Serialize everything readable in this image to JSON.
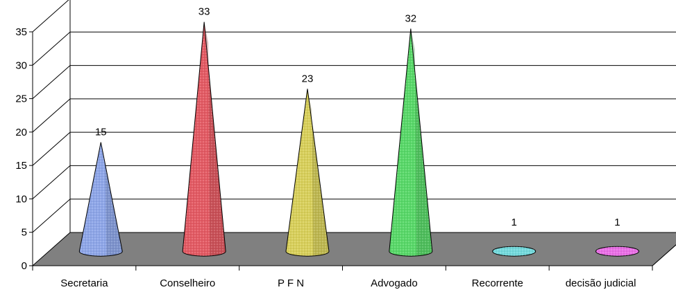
{
  "chart_data": {
    "type": "bar",
    "style": "3d-cone",
    "categories": [
      "Secretaria",
      "Conselheiro",
      "P F N",
      "Advogado",
      "Recorrente",
      "decisão judicial"
    ],
    "values": [
      15,
      33,
      23,
      32,
      1,
      1
    ],
    "data_labels": [
      "15",
      "33",
      "23",
      "32",
      "1",
      "1"
    ],
    "colors": [
      "#8ea6e8",
      "#e35a63",
      "#d8cf5a",
      "#58d868",
      "#73d9dc",
      "#ea6fe6"
    ],
    "ylim": [
      0,
      35
    ],
    "yticks": [
      "0",
      "5",
      "10",
      "15",
      "20",
      "25",
      "30",
      "35"
    ],
    "grid": true,
    "floor_color": "#808080",
    "title": "",
    "xlabel": "",
    "ylabel": ""
  }
}
